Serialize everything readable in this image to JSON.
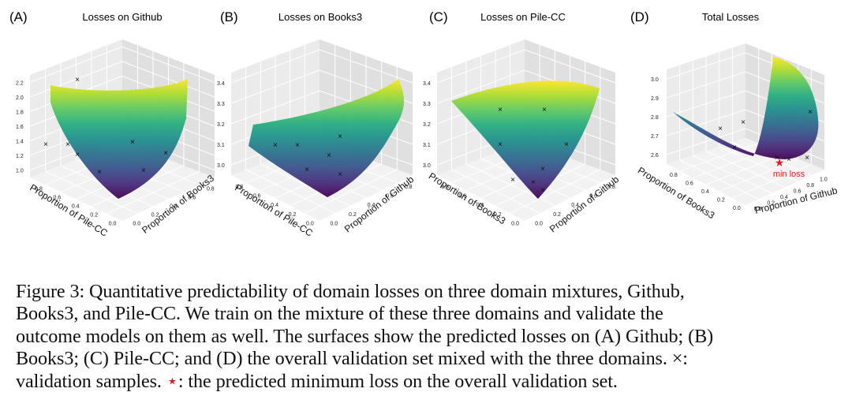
{
  "chart_data": [
    {
      "type": "surface3d",
      "panel_label": "(A)",
      "title": "Losses on Github",
      "axis1_label": "Proportion of Pile-CC",
      "axis2_label": "Proportion of Books3",
      "axis1_ticks": [
        "0.0",
        "0.2",
        "0.4",
        "0.6",
        "0.8"
      ],
      "axis2_ticks": [
        "0.0",
        "0.2",
        "0.4",
        "0.6",
        "0.8"
      ],
      "z_ticks": [
        "1.0",
        "1.2",
        "1.4",
        "1.6",
        "1.8",
        "2.0",
        "2.2"
      ],
      "zlim": [
        0.9,
        2.3
      ],
      "samples_marker": "×"
    },
    {
      "type": "surface3d",
      "panel_label": "(B)",
      "title": "Losses on Books3",
      "axis1_label": "Proportion of Pile-CC",
      "axis2_label": "Proportion of Github",
      "axis1_ticks": [
        "0.0",
        "0.2",
        "0.4",
        "0.6",
        "0.8"
      ],
      "axis2_ticks": [
        "0.0",
        "0.2",
        "0.4",
        "0.6",
        "0.8"
      ],
      "z_ticks": [
        "3.0",
        "3.1",
        "3.2",
        "3.3",
        "3.4"
      ],
      "zlim": [
        2.95,
        3.45
      ],
      "samples_marker": "×"
    },
    {
      "type": "surface3d",
      "panel_label": "(C)",
      "title": "Losses on Pile-CC",
      "axis1_label": "Proportion of Books3",
      "axis2_label": "Proportion of Github",
      "axis1_ticks": [
        "0.0",
        "0.2",
        "0.4",
        "0.6",
        "0.8"
      ],
      "axis2_ticks": [
        "0.0",
        "0.2",
        "0.4",
        "0.6",
        "0.8"
      ],
      "z_ticks": [
        "3.0",
        "3.1",
        "3.2",
        "3.3",
        "3.4"
      ],
      "zlim": [
        2.95,
        3.45
      ],
      "samples_marker": "×"
    },
    {
      "type": "surface3d",
      "panel_label": "(D)",
      "title": "Total Losses",
      "axis1_label": "Proportion of Books3",
      "axis2_label": "Proportion of Github",
      "axis1_ticks": [
        "0.0",
        "0.2",
        "0.4",
        "0.6",
        "0.8"
      ],
      "axis2_ticks": [
        "0.0",
        "0.2",
        "0.4",
        "0.6",
        "0.8",
        "1.0"
      ],
      "z_ticks": [
        "2.6",
        "2.7",
        "2.8",
        "2.9",
        "3.0"
      ],
      "zlim": [
        2.55,
        3.05
      ],
      "samples_marker": "×",
      "min_marker": "★",
      "min_label": "min loss"
    }
  ],
  "caption": {
    "lines": [
      "Figure 3: Quantitative predictability of domain losses on three domain mixtures, Github,",
      "Books3, and Pile-CC. We train on the mixture of these three domains and validate the",
      "outcome models on them as well. The surfaces show the predicted losses on (A) Github; (B)",
      "Books3; (C) Pile-CC; and (D) the overall validation set mixed with the three domains. ×:"
    ],
    "last_line_before_star": "validation samples.",
    "star": "⋆",
    "last_line_after_star": ": the predicted minimum loss on the overall validation set."
  },
  "colors": {
    "viridis": [
      "#440154",
      "#472d7b",
      "#3b528b",
      "#2c728e",
      "#21918c",
      "#28ae80",
      "#5ec962",
      "#addc30",
      "#fde725"
    ],
    "pane_left": "#ebebeb",
    "pane_right": "#e0e0e0",
    "pane_floor": "#f2f2f2",
    "grid": "#ffffff",
    "min_marker": "#e02020"
  }
}
